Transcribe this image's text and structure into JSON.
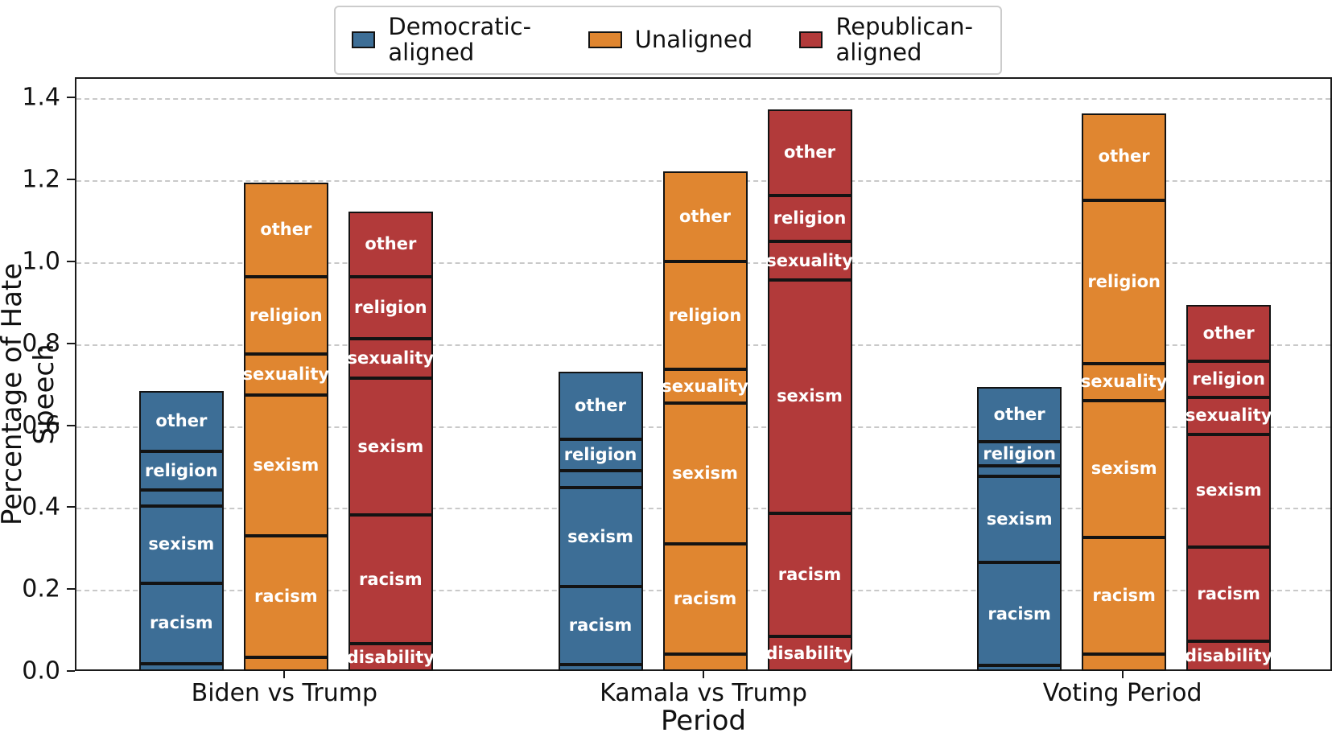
{
  "chart_data": {
    "type": "bar",
    "stacked": true,
    "xlabel": "Period",
    "ylabel": "Percentage of Hate Speech",
    "ylim": [
      0,
      1.45
    ],
    "yticks": [
      0.0,
      0.2,
      0.4,
      0.6,
      0.8,
      1.0,
      1.2,
      1.4
    ],
    "grid": "horizontal-dashed",
    "legend_position": "top-center",
    "categories": [
      "Biden vs Trump",
      "Kamala vs Trump",
      "Voting Period"
    ],
    "stack_order": [
      "disability",
      "racism",
      "sexism",
      "sexuality",
      "religion",
      "other"
    ],
    "segment_label_min_height": 0.05,
    "series": [
      {
        "name": "Democratic-aligned",
        "color": "#3d6e96",
        "stacks": [
          {
            "disability": 0.018,
            "racism": 0.196,
            "sexism": 0.189,
            "sexuality": 0.039,
            "religion": 0.094,
            "other": 0.148
          },
          {
            "disability": 0.016,
            "racism": 0.191,
            "sexism": 0.24,
            "sexuality": 0.043,
            "religion": 0.075,
            "other": 0.165
          },
          {
            "disability": 0.013,
            "racism": 0.252,
            "sexism": 0.211,
            "sexuality": 0.025,
            "religion": 0.058,
            "other": 0.135
          }
        ]
      },
      {
        "name": "Unaligned",
        "color": "#e08630",
        "stacks": [
          {
            "disability": 0.033,
            "racism": 0.297,
            "sexism": 0.344,
            "sexuality": 0.1,
            "religion": 0.188,
            "other": 0.23
          },
          {
            "disability": 0.041,
            "racism": 0.269,
            "sexism": 0.345,
            "sexuality": 0.081,
            "religion": 0.264,
            "other": 0.22
          },
          {
            "disability": 0.042,
            "racism": 0.284,
            "sexism": 0.335,
            "sexuality": 0.089,
            "religion": 0.399,
            "other": 0.213
          }
        ]
      },
      {
        "name": "Republican-aligned",
        "color": "#b23a3a",
        "stacks": [
          {
            "disability": 0.066,
            "racism": 0.315,
            "sexism": 0.334,
            "sexuality": 0.097,
            "religion": 0.15,
            "other": 0.16
          },
          {
            "disability": 0.084,
            "racism": 0.301,
            "sexism": 0.57,
            "sexuality": 0.094,
            "religion": 0.113,
            "other": 0.21
          },
          {
            "disability": 0.073,
            "racism": 0.23,
            "sexism": 0.275,
            "sexuality": 0.09,
            "religion": 0.088,
            "other": 0.137
          }
        ]
      }
    ]
  }
}
